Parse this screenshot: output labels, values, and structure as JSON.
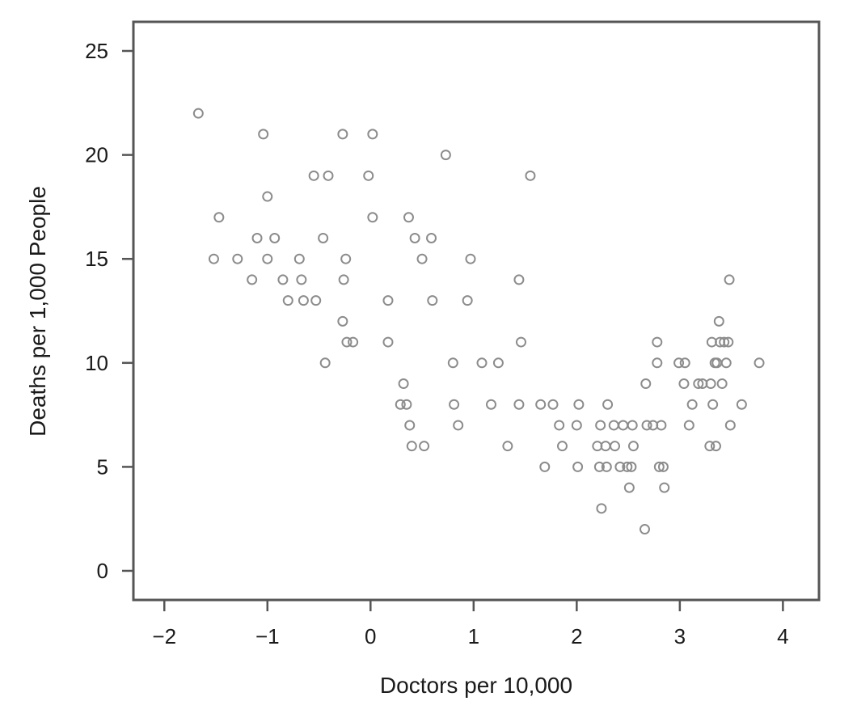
{
  "chart_data": {
    "type": "scatter",
    "title": "",
    "xlabel": "Doctors per 10,000",
    "ylabel": "Deaths per 1,000 People",
    "xlim": [
      -2.3,
      4.35
    ],
    "ylim": [
      -1.4,
      26.4
    ],
    "grid": false,
    "x_ticks": [
      -2,
      -1,
      0,
      1,
      2,
      3,
      4
    ],
    "x_tick_labels": [
      "−2",
      "−1",
      "0",
      "1",
      "2",
      "3",
      "4"
    ],
    "y_ticks": [
      0,
      5,
      10,
      15,
      20,
      25
    ],
    "y_tick_labels": [
      "0",
      "5",
      "10",
      "15",
      "20",
      "25"
    ],
    "colors": {
      "marker": "#8c8c8c",
      "frame": "#555555",
      "text": "#1a1a1a"
    },
    "series": [
      {
        "points": [
          [
            -1.67,
            22
          ],
          [
            -1.52,
            15
          ],
          [
            -1.47,
            17
          ],
          [
            -1.29,
            15
          ],
          [
            -1.15,
            14
          ],
          [
            -1.1,
            16
          ],
          [
            -1.04,
            21
          ],
          [
            -1.0,
            18
          ],
          [
            -1.0,
            15
          ],
          [
            -0.93,
            16
          ],
          [
            -0.85,
            14
          ],
          [
            -0.8,
            13
          ],
          [
            -0.69,
            15
          ],
          [
            -0.67,
            14
          ],
          [
            -0.65,
            13
          ],
          [
            -0.55,
            19
          ],
          [
            -0.53,
            13
          ],
          [
            -0.46,
            16
          ],
          [
            -0.44,
            10
          ],
          [
            -0.41,
            19
          ],
          [
            -0.27,
            12
          ],
          [
            -0.27,
            21
          ],
          [
            -0.26,
            14
          ],
          [
            -0.24,
            15
          ],
          [
            -0.23,
            11
          ],
          [
            -0.17,
            11
          ],
          [
            -0.02,
            19
          ],
          [
            0.02,
            21
          ],
          [
            0.02,
            17
          ],
          [
            0.17,
            13
          ],
          [
            0.17,
            11
          ],
          [
            0.29,
            8
          ],
          [
            0.32,
            9
          ],
          [
            0.35,
            8
          ],
          [
            0.37,
            17
          ],
          [
            0.38,
            7
          ],
          [
            0.4,
            6
          ],
          [
            0.43,
            16
          ],
          [
            0.5,
            15
          ],
          [
            0.52,
            6
          ],
          [
            0.59,
            16
          ],
          [
            0.6,
            13
          ],
          [
            0.73,
            20
          ],
          [
            0.8,
            10
          ],
          [
            0.81,
            8
          ],
          [
            0.85,
            7
          ],
          [
            0.94,
            13
          ],
          [
            0.97,
            15
          ],
          [
            1.08,
            10
          ],
          [
            1.17,
            8
          ],
          [
            1.24,
            10
          ],
          [
            1.33,
            6
          ],
          [
            1.44,
            14
          ],
          [
            1.44,
            8
          ],
          [
            1.46,
            11
          ],
          [
            1.55,
            19
          ],
          [
            1.65,
            8
          ],
          [
            1.69,
            5
          ],
          [
            1.77,
            8
          ],
          [
            1.83,
            7
          ],
          [
            1.86,
            6
          ],
          [
            2.0,
            7
          ],
          [
            2.01,
            5
          ],
          [
            2.02,
            8
          ],
          [
            2.2,
            6
          ],
          [
            2.22,
            5
          ],
          [
            2.23,
            7
          ],
          [
            2.24,
            3
          ],
          [
            2.28,
            6
          ],
          [
            2.29,
            5
          ],
          [
            2.3,
            8
          ],
          [
            2.36,
            7
          ],
          [
            2.37,
            6
          ],
          [
            2.42,
            5
          ],
          [
            2.45,
            7
          ],
          [
            2.49,
            5
          ],
          [
            2.51,
            4
          ],
          [
            2.53,
            5
          ],
          [
            2.54,
            7
          ],
          [
            2.55,
            6
          ],
          [
            2.66,
            2
          ],
          [
            2.67,
            9
          ],
          [
            2.68,
            7
          ],
          [
            2.74,
            7
          ],
          [
            2.78,
            11
          ],
          [
            2.78,
            10
          ],
          [
            2.8,
            5
          ],
          [
            2.82,
            7
          ],
          [
            2.84,
            5
          ],
          [
            2.85,
            4
          ],
          [
            2.99,
            10
          ],
          [
            3.04,
            9
          ],
          [
            3.05,
            10
          ],
          [
            3.09,
            7
          ],
          [
            3.12,
            8
          ],
          [
            3.18,
            9
          ],
          [
            3.22,
            9
          ],
          [
            3.29,
            6
          ],
          [
            3.3,
            9
          ],
          [
            3.31,
            11
          ],
          [
            3.32,
            8
          ],
          [
            3.34,
            10
          ],
          [
            3.35,
            6
          ],
          [
            3.36,
            10
          ],
          [
            3.38,
            12
          ],
          [
            3.39,
            11
          ],
          [
            3.41,
            9
          ],
          [
            3.43,
            11
          ],
          [
            3.45,
            10
          ],
          [
            3.47,
            11
          ],
          [
            3.48,
            14
          ],
          [
            3.49,
            7
          ],
          [
            3.6,
            8
          ],
          [
            3.77,
            10
          ]
        ]
      }
    ]
  }
}
